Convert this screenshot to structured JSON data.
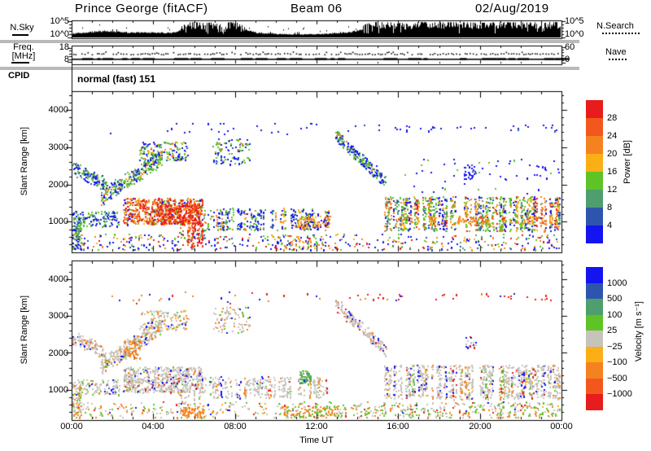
{
  "header": {
    "station_title": "Prince George (fitACF)",
    "beam_label": "Beam 06",
    "date_label": "02/Aug/2019"
  },
  "sky_panel": {
    "left_label": "N.Sky",
    "right_label": "N.Search",
    "y_top_label": "10^5",
    "y_bottom_label": "10^0"
  },
  "freq_panel": {
    "left_label_top": "Freq.",
    "left_label_bottom": "[MHz]",
    "y_top_label": "18",
    "y_bottom_label": "8",
    "right_top_label": "60",
    "right_bottom_label": "0",
    "right_label": "Nave"
  },
  "cpid": {
    "label": "CPID",
    "value": "normal (fast) 151"
  },
  "range_axis": {
    "label": "Slant Range [km]",
    "ticks": [
      "4000",
      "3000",
      "2000",
      "1000"
    ]
  },
  "time_axis": {
    "label": "Time UT",
    "ticks": [
      "00:00",
      "04:00",
      "08:00",
      "12:00",
      "16:00",
      "20:00",
      "00:00"
    ]
  },
  "power_colorbar": {
    "title": "Power [dB]",
    "ticks": [
      "28",
      "24",
      "20",
      "16",
      "12",
      "8",
      "4"
    ],
    "colors": [
      "#e81c1c",
      "#f2581d",
      "#f58220",
      "#fcae17",
      "#5fc327",
      "#4f9e6e",
      "#2e55ae",
      "#1414f0"
    ]
  },
  "velocity_colorbar": {
    "title": "Velocity [m s⁻¹]",
    "ticks": [
      "1000",
      "500",
      "100",
      "25",
      "−25",
      "−100",
      "−500",
      "−1000"
    ],
    "colors": [
      "#1414f0",
      "#2e55ae",
      "#4f9e6e",
      "#5fc327",
      "#c6c3bb",
      "#fcae17",
      "#f58220",
      "#f2581d",
      "#e81c1c"
    ]
  },
  "palette_colors": {
    "blue": "#1414f0",
    "midblue": "#2e55ae",
    "teal": "#4f9e6e",
    "green": "#5fc327",
    "gray": "#c6c3bb",
    "yellow": "#fcae17",
    "orange": "#f58220",
    "orangered": "#f2581d",
    "red": "#e81c1c"
  },
  "chart_data": [
    {
      "panel": "noise-sky",
      "type": "area",
      "title": "N.Sky",
      "x_range_hours": [
        0,
        24
      ],
      "y_scale": "log",
      "y_range": [
        "10^0",
        "10^5"
      ],
      "envelope": [
        [
          0,
          0.22
        ],
        [
          0.7,
          0.3
        ],
        [
          1.2,
          0.38
        ],
        [
          1.8,
          0.42
        ],
        [
          2.3,
          0.36
        ],
        [
          3,
          0.3
        ],
        [
          3.6,
          0.32
        ],
        [
          4.2,
          0.3
        ],
        [
          4.8,
          0.27
        ],
        [
          5.2,
          0.33
        ],
        [
          5.5,
          0.9
        ],
        [
          6,
          0.95
        ],
        [
          6.5,
          0.88
        ],
        [
          7,
          0.95
        ],
        [
          7.4,
          0.72
        ],
        [
          7.7,
          0.95
        ],
        [
          8.2,
          0.9
        ],
        [
          8.5,
          0.55
        ],
        [
          9,
          0.3
        ],
        [
          9.5,
          0.24
        ],
        [
          10,
          0.2
        ],
        [
          10.8,
          0.17
        ],
        [
          11.6,
          0.17
        ],
        [
          12.4,
          0.2
        ],
        [
          13,
          0.27
        ],
        [
          13.6,
          0.33
        ],
        [
          14,
          0.45
        ],
        [
          14.4,
          0.82
        ],
        [
          14.8,
          0.96
        ],
        [
          16,
          0.92
        ],
        [
          16.5,
          0.84
        ],
        [
          17,
          0.95
        ],
        [
          18,
          0.93
        ],
        [
          19,
          0.95
        ],
        [
          20,
          0.9
        ],
        [
          21,
          0.95
        ],
        [
          22,
          0.92
        ],
        [
          23,
          0.95
        ],
        [
          24,
          0.95
        ]
      ]
    },
    {
      "panel": "frequency",
      "type": "line",
      "y_range_mhz": [
        8,
        18
      ],
      "frequency_mhz": 10.4,
      "nave_axis_range": [
        0,
        60
      ],
      "nave_value": 20
    },
    {
      "panel": "power",
      "type": "heatmap",
      "units": "dB",
      "value_bins": [
        4,
        8,
        12,
        16,
        20,
        24,
        28
      ],
      "x_range_hours": [
        0,
        24
      ],
      "range_km": [
        180,
        4500
      ],
      "features": [
        {
          "t": [
            0,
            24
          ],
          "r": [
            180,
            680
          ],
          "density": 0.1,
          "style": "speckle",
          "palette": {
            "blue": 0.3,
            "midblue": 0.12,
            "green": 0.18,
            "teal": 0.08,
            "yellow": 0.08,
            "orange": 0.12,
            "red": 0.12
          }
        },
        {
          "t": [
            9.8,
            13.2
          ],
          "r": [
            180,
            640
          ],
          "density": 0.13,
          "style": "speckle",
          "palette": {
            "blue": 0.25,
            "green": 0.25,
            "orange": 0.25,
            "red": 0.12,
            "yellow": 0.13
          }
        },
        {
          "t": [
            0,
            0.45
          ],
          "r": [
            180,
            1150
          ],
          "density": 0.5,
          "style": "fill",
          "palette": {
            "blue": 0.35,
            "green": 0.3,
            "teal": 0.2,
            "midblue": 0.1,
            "orange": 0.05
          }
        },
        {
          "t": [
            0,
            1.7
          ],
          "style": "diag",
          "path": [
            [
              0,
              2450
            ],
            [
              1.7,
              2000
            ]
          ],
          "thick": 430,
          "density": 0.42,
          "palette": {
            "blue": 0.35,
            "midblue": 0.15,
            "teal": 0.2,
            "green": 0.3
          }
        },
        {
          "t": [
            0,
            2.3
          ],
          "r": [
            880,
            1300
          ],
          "density": 0.35,
          "style": "fill",
          "palette": {
            "blue": 0.4,
            "midblue": 0.15,
            "teal": 0.15,
            "green": 0.3
          }
        },
        {
          "t": [
            1.4,
            4.4
          ],
          "style": "diag",
          "path": [
            [
              1.4,
              1650
            ],
            [
              4.4,
              2750
            ]
          ],
          "thick": 520,
          "density": 0.5,
          "palette": {
            "green": 0.38,
            "blue": 0.2,
            "midblue": 0.1,
            "teal": 0.17,
            "orange": 0.1,
            "yellow": 0.05
          }
        },
        {
          "t": [
            3.3,
            5.7
          ],
          "r": [
            2650,
            3160
          ],
          "density": 0.32,
          "style": "fill",
          "palette": {
            "green": 0.35,
            "blue": 0.3,
            "teal": 0.1,
            "orange": 0.15,
            "yellow": 0.1
          }
        },
        {
          "t": [
            6.9,
            8.7
          ],
          "r": [
            2550,
            3250
          ],
          "density": 0.2,
          "style": "fill",
          "palette": {
            "blue": 0.45,
            "midblue": 0.1,
            "green": 0.3,
            "teal": 0.05,
            "orange": 0.1
          }
        },
        {
          "t": [
            2.5,
            6.4
          ],
          "r": [
            950,
            1640
          ],
          "density": 0.62,
          "style": "fill",
          "palette": {
            "red": 0.3,
            "orangered": 0.2,
            "orange": 0.22,
            "yellow": 0.13,
            "green": 0.08,
            "blue": 0.07
          }
        },
        {
          "t": [
            4.2,
            6.3
          ],
          "r": [
            950,
            1500
          ],
          "density": 0.55,
          "style": "fill",
          "palette": {
            "red": 0.55,
            "orangered": 0.3,
            "orange": 0.15
          }
        },
        {
          "t": [
            5.2,
            6.4
          ],
          "r": [
            330,
            1000
          ],
          "density": 0.4,
          "style": "stripes",
          "palette": {
            "red": 0.6,
            "orangered": 0.25,
            "orange": 0.1,
            "green": 0.05
          }
        },
        {
          "t": [
            6.4,
            12.7
          ],
          "r": [
            790,
            1370
          ],
          "density": 0.38,
          "style": "stripes",
          "palette": {
            "blue": 0.4,
            "midblue": 0.12,
            "green": 0.2,
            "teal": 0.08,
            "orange": 0.12,
            "yellow": 0.08
          }
        },
        {
          "t": [
            10.9,
            12.7
          ],
          "r": [
            860,
            1170
          ],
          "density": 0.4,
          "style": "fill",
          "palette": {
            "orange": 0.45,
            "yellow": 0.2,
            "orangered": 0.1,
            "green": 0.12,
            "blue": 0.13
          }
        },
        {
          "t": [
            12.9,
            15.4
          ],
          "style": "diag",
          "path": [
            [
              12.9,
              3350
            ],
            [
              15.4,
              2050
            ]
          ],
          "thick": 390,
          "density": 0.5,
          "palette": {
            "blue": 0.4,
            "midblue": 0.1,
            "green": 0.33,
            "teal": 0.12,
            "orange": 0.05
          }
        },
        {
          "t": [
            13.5,
            24
          ],
          "r": [
            3440,
            3620
          ],
          "density": 0.05,
          "style": "speckle",
          "palette": {
            "blue": 0.85,
            "midblue": 0.15
          }
        },
        {
          "t": [
            1.5,
            12.5
          ],
          "r": [
            3350,
            3660
          ],
          "density": 0.02,
          "style": "speckle",
          "palette": {
            "blue": 1
          }
        },
        {
          "t": [
            15.3,
            24
          ],
          "r": [
            760,
            1690
          ],
          "density": 0.52,
          "style": "stripes",
          "palette": {
            "green": 0.28,
            "blue": 0.2,
            "midblue": 0.06,
            "teal": 0.08,
            "orange": 0.2,
            "yellow": 0.12,
            "red": 0.06
          }
        },
        {
          "t": [
            15.6,
            24
          ],
          "r": [
            950,
            1160
          ],
          "density": 0.42,
          "style": "stripes",
          "palette": {
            "orange": 0.55,
            "yellow": 0.25,
            "orangered": 0.1,
            "red": 0.1
          }
        },
        {
          "t": [
            16,
            24
          ],
          "r": [
            1750,
            2700
          ],
          "density": 0.016,
          "style": "speckle",
          "palette": {
            "blue": 0.7,
            "green": 0.3
          }
        },
        {
          "t": [
            19.2,
            19.8
          ],
          "r": [
            2150,
            2550
          ],
          "density": 0.28,
          "style": "fill",
          "palette": {
            "blue": 0.8,
            "midblue": 0.2
          }
        },
        {
          "t": [
            22.6,
            23.2
          ],
          "r": [
            2200,
            2500
          ],
          "density": 0.12,
          "style": "speckle",
          "palette": {
            "blue": 1
          }
        }
      ]
    },
    {
      "panel": "velocity",
      "type": "heatmap",
      "units": "m s⁻¹",
      "value_bins": [
        -1000,
        -500,
        -100,
        -25,
        25,
        100,
        500,
        1000
      ],
      "x_range_hours": [
        0,
        24
      ],
      "range_km": [
        180,
        4500
      ],
      "features": [
        {
          "t": [
            0,
            24
          ],
          "r": [
            180,
            680
          ],
          "density": 0.09,
          "style": "speckle",
          "palette": {
            "gray": 0.42,
            "green": 0.25,
            "orange": 0.18,
            "blue": 0.06,
            "red": 0.05,
            "yellow": 0.04
          }
        },
        {
          "t": [
            0,
            0.45
          ],
          "r": [
            180,
            1150
          ],
          "density": 0.45,
          "style": "fill",
          "palette": {
            "gray": 0.55,
            "orange": 0.28,
            "green": 0.08,
            "red": 0.05,
            "blue": 0.04
          }
        },
        {
          "t": [
            0,
            1.7
          ],
          "style": "diag",
          "path": [
            [
              0,
              2450
            ],
            [
              1.7,
              2000
            ]
          ],
          "thick": 430,
          "density": 0.4,
          "palette": {
            "gray": 0.78,
            "orange": 0.1,
            "red": 0.06,
            "blue": 0.06
          }
        },
        {
          "t": [
            0,
            2.3
          ],
          "r": [
            880,
            1300
          ],
          "density": 0.32,
          "style": "fill",
          "palette": {
            "gray": 0.7,
            "blue": 0.1,
            "orange": 0.1,
            "green": 0.1
          }
        },
        {
          "t": [
            1.4,
            4.4
          ],
          "style": "diag",
          "path": [
            [
              1.4,
              1650
            ],
            [
              4.4,
              2750
            ]
          ],
          "thick": 520,
          "density": 0.48,
          "palette": {
            "gray": 0.72,
            "orange": 0.16,
            "blue": 0.06,
            "green": 0.06
          }
        },
        {
          "t": [
            2.55,
            3.35
          ],
          "r": [
            1850,
            2380
          ],
          "density": 0.4,
          "style": "fill",
          "palette": {
            "orange": 0.7,
            "orangered": 0.12,
            "gray": 0.18
          }
        },
        {
          "t": [
            3.3,
            5.7
          ],
          "r": [
            2650,
            3160
          ],
          "density": 0.28,
          "style": "fill",
          "palette": {
            "gray": 0.56,
            "orange": 0.2,
            "yellow": 0.1,
            "blue": 0.07,
            "green": 0.07
          }
        },
        {
          "t": [
            6.9,
            8.7
          ],
          "r": [
            2550,
            3250
          ],
          "density": 0.18,
          "style": "fill",
          "palette": {
            "gray": 0.6,
            "orange": 0.2,
            "blue": 0.1,
            "green": 0.1
          }
        },
        {
          "t": [
            2.5,
            6.4
          ],
          "r": [
            950,
            1640
          ],
          "density": 0.55,
          "style": "fill",
          "palette": {
            "gray": 0.8,
            "orange": 0.07,
            "blue": 0.05,
            "green": 0.04,
            "red": 0.04
          }
        },
        {
          "t": [
            5.2,
            6.4
          ],
          "r": [
            330,
            1000
          ],
          "density": 0.35,
          "style": "stripes",
          "palette": {
            "gray": 0.5,
            "orange": 0.32,
            "green": 0.18
          }
        },
        {
          "t": [
            5.4,
            6.5
          ],
          "r": [
            250,
            560
          ],
          "density": 0.55,
          "style": "fill",
          "palette": {
            "orange": 0.85,
            "yellow": 0.15
          }
        },
        {
          "t": [
            6.4,
            12.7
          ],
          "r": [
            790,
            1370
          ],
          "density": 0.36,
          "style": "stripes",
          "palette": {
            "gray": 0.76,
            "orange": 0.08,
            "blue": 0.06,
            "green": 0.06,
            "red": 0.04
          }
        },
        {
          "t": [
            10.3,
            13.0
          ],
          "r": [
            200,
            570
          ],
          "density": 0.4,
          "style": "fill",
          "palette": {
            "orange": 0.5,
            "green": 0.28,
            "gray": 0.15,
            "yellow": 0.07
          }
        },
        {
          "t": [
            11.15,
            11.7
          ],
          "r": [
            1200,
            1530
          ],
          "density": 0.75,
          "style": "fill",
          "palette": {
            "teal": 0.68,
            "green": 0.32
          }
        },
        {
          "t": [
            12.9,
            15.4
          ],
          "style": "diag",
          "path": [
            [
              12.9,
              3350
            ],
            [
              15.4,
              2050
            ]
          ],
          "thick": 390,
          "density": 0.46,
          "palette": {
            "gray": 0.84,
            "blue": 0.06,
            "red": 0.05,
            "orange": 0.05
          }
        },
        {
          "t": [
            13.5,
            24
          ],
          "r": [
            3440,
            3620
          ],
          "density": 0.05,
          "style": "speckle",
          "palette": {
            "red": 0.72,
            "orange": 0.16,
            "blue": 0.12
          }
        },
        {
          "t": [
            1.5,
            12.5
          ],
          "r": [
            3350,
            3660
          ],
          "density": 0.02,
          "style": "speckle",
          "palette": {
            "red": 0.4,
            "blue": 0.3,
            "orange": 0.3
          }
        },
        {
          "t": [
            15.3,
            24
          ],
          "r": [
            760,
            1690
          ],
          "density": 0.48,
          "style": "stripes",
          "palette": {
            "gray": 0.7,
            "blue": 0.08,
            "orange": 0.08,
            "red": 0.05,
            "green": 0.05,
            "yellow": 0.04
          }
        },
        {
          "t": [
            13,
            24
          ],
          "r": [
            200,
            660
          ],
          "density": 0.12,
          "style": "speckle",
          "palette": {
            "green": 0.45,
            "gray": 0.3,
            "orange": 0.17,
            "red": 0.08
          }
        },
        {
          "t": [
            19.2,
            19.8
          ],
          "r": [
            2150,
            2550
          ],
          "density": 0.18,
          "style": "speckle",
          "palette": {
            "gray": 0.5,
            "red": 0.25,
            "blue": 0.25
          }
        }
      ]
    }
  ]
}
